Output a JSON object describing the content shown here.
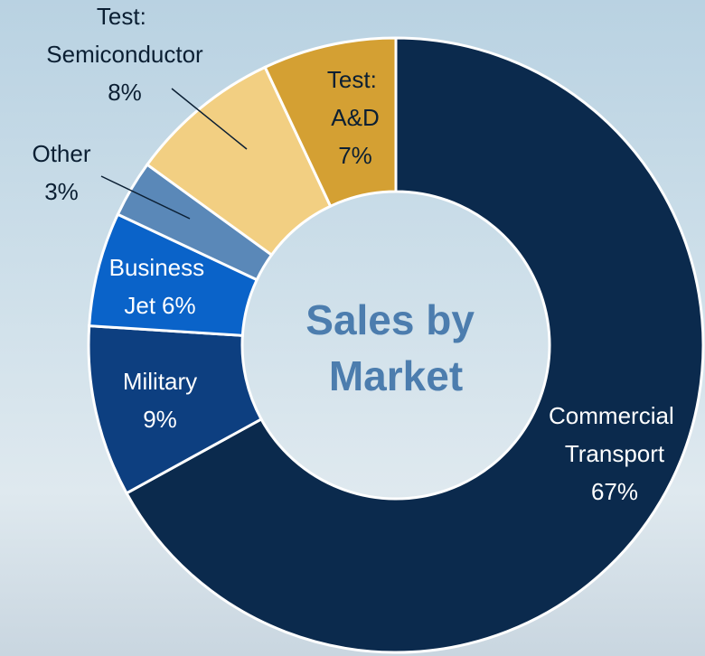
{
  "chart_data": {
    "type": "donut",
    "title": "Sales by Market",
    "categories": [
      "Commercial Transport",
      "Military",
      "Business Jet",
      "Other",
      "Test: Semiconductor",
      "Test: A&D"
    ],
    "values": [
      67,
      9,
      6,
      3,
      8,
      7
    ],
    "value_labels": [
      "67%",
      "9%",
      "6%",
      "3%",
      "8%",
      "7%"
    ],
    "colors": [
      "#0b2a4d",
      "#0d3f80",
      "#0a63c9",
      "#5a88b8",
      "#f2cf82",
      "#d4a033"
    ],
    "start_angle": 0,
    "direction": "clockwise"
  }
}
